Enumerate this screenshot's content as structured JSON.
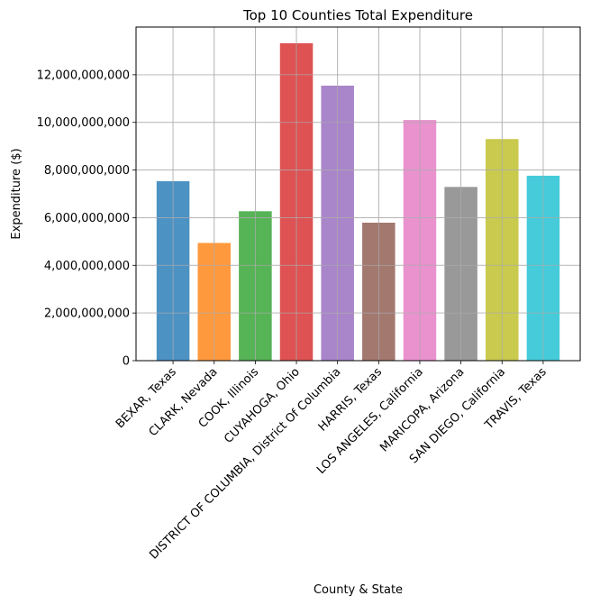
{
  "chart_data": {
    "type": "bar",
    "title": "Top 10 Counties Total Expenditure",
    "xlabel": "County & State",
    "ylabel": "Expenditure ($)",
    "ylim": [
      0,
      14000000000
    ],
    "yticks": [
      0,
      2000000000,
      4000000000,
      6000000000,
      8000000000,
      10000000000,
      12000000000
    ],
    "ytick_labels": [
      "0",
      "2,000,000,000",
      "4,000,000,000",
      "6,000,000,000",
      "8,000,000,000",
      "10,000,000,000",
      "12,000,000,000"
    ],
    "grid": true,
    "categories": [
      "BEXAR, Texas",
      "CLARK, Nevada",
      "COOK, Illinois",
      "CUYAHOGA, Ohio",
      "DISTRICT OF COLUMBIA, District Of Columbia",
      "HARRIS, Texas",
      "LOS ANGELES, California",
      "MARICOPA, Arizona",
      "SAN DIEGO, California",
      "TRAVIS, Texas"
    ],
    "values": [
      7530000000,
      4940000000,
      6270000000,
      13320000000,
      11540000000,
      5790000000,
      10100000000,
      7290000000,
      9300000000,
      7760000000
    ],
    "colors": [
      "#1f77b4",
      "#ff7f0e",
      "#2ca02c",
      "#d62728",
      "#9467bd",
      "#8c564b",
      "#e377c2",
      "#7f7f7f",
      "#bcbd22",
      "#17becf"
    ]
  }
}
